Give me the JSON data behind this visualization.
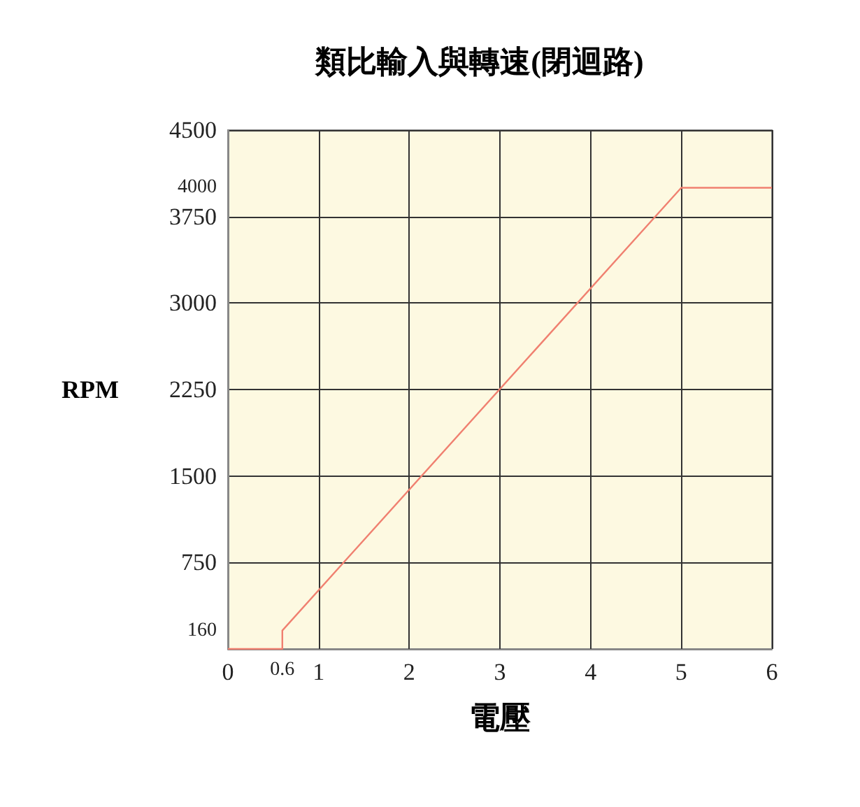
{
  "chart_data": {
    "type": "line",
    "title": "類比輸入與轉速(閉迴路)",
    "xlabel": "電壓",
    "ylabel": "RPM",
    "x": [
      0,
      0.6,
      0.6,
      5,
      6
    ],
    "series": [
      {
        "color": "#f08070",
        "values": [
          0,
          0,
          160,
          4000,
          4000
        ]
      }
    ],
    "xlim": [
      0,
      6
    ],
    "ylim": [
      0,
      4500
    ],
    "xticks": [
      0,
      {
        "value": 0.6,
        "label": "0.6"
      },
      1,
      2,
      3,
      4,
      5,
      6
    ],
    "yticks": [
      {
        "value": 0,
        "label": null
      },
      {
        "value": 160,
        "label": "160"
      },
      750,
      1500,
      2250,
      3000,
      3750,
      {
        "value": 4000,
        "label": "4000"
      },
      4500
    ],
    "grid": true,
    "marker": "none",
    "line_style": "solid"
  }
}
